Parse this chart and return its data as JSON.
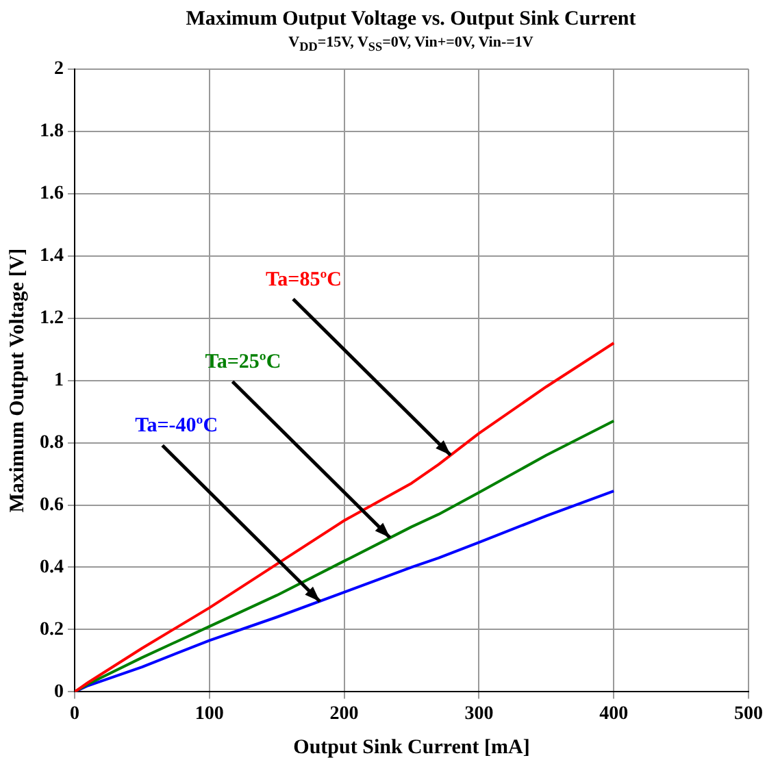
{
  "chart_data": {
    "type": "line",
    "title": "Maximum Output Voltage vs. Output Sink Current",
    "subtitle": "V$_{DD}$=15V, V$_{SS}$=0V, Vin+=0V, Vin-=1V",
    "xlabel": "Output Sink Current [mA]",
    "ylabel": "Maximum Output Voltage [V]",
    "x": [
      0,
      10,
      50,
      100,
      150,
      200,
      250,
      270,
      300,
      350,
      400
    ],
    "series": [
      {
        "color": "#ff0000",
        "values": [
          0,
          0.03,
          0.14,
          0.27,
          0.41,
          0.55,
          0.67,
          0.73,
          0.83,
          0.98,
          1.12
        ]
      },
      {
        "color": "#008000",
        "values": [
          0,
          0.025,
          0.11,
          0.21,
          0.31,
          0.42,
          0.53,
          0.57,
          0.64,
          0.76,
          0.87
        ]
      },
      {
        "color": "#0000ff",
        "values": [
          0,
          0.02,
          0.08,
          0.165,
          0.24,
          0.32,
          0.4,
          0.43,
          0.48,
          0.565,
          0.645
        ]
      }
    ],
    "annotations": [
      {
        "text": "Ta=85ºC",
        "x": 279,
        "y": 0.76
      },
      {
        "text": "Ta=25ºC",
        "x": 234,
        "y": 0.495
      },
      {
        "text": "Ta=-40ºC",
        "x": 182,
        "y": 0.29
      }
    ],
    "xlim": [
      0,
      500
    ],
    "xticks": [
      0,
      100,
      200,
      300,
      400,
      500
    ],
    "ylim": [
      0,
      2
    ],
    "yticks": [
      0,
      0.2,
      0.4,
      0.6,
      0.8,
      1,
      1.2,
      1.4,
      1.6,
      1.8,
      2
    ],
    "grid": true,
    "legend": false,
    "marker": "none",
    "line_style": "solid"
  }
}
